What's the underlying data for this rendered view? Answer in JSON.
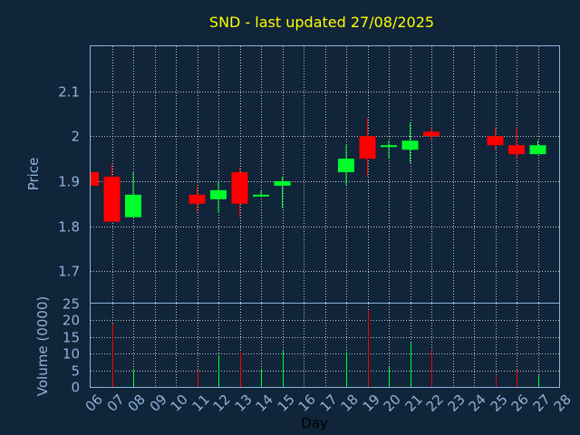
{
  "chart_data": {
    "type": "candlestick",
    "title": "SND - last updated 27/08/2025",
    "xlabel": "Day",
    "price_panel": {
      "ylabel": "Price",
      "ylim": [
        1.63,
        2.2
      ],
      "yticks": [
        1.7,
        1.8,
        1.9,
        2,
        2.1
      ],
      "ytick_labels": [
        "1.7",
        "1.8",
        "1.9",
        "2",
        "2.1"
      ]
    },
    "volume_panel": {
      "ylabel": "Volume (0000)",
      "ylim": [
        0,
        25
      ],
      "yticks": [
        0,
        5,
        10,
        15,
        20,
        25
      ],
      "ytick_labels": [
        "0",
        "5",
        "10",
        "15",
        "20",
        "25"
      ]
    },
    "x_categories": [
      "06",
      "07",
      "08",
      "09",
      "10",
      "11",
      "12",
      "13",
      "14",
      "15",
      "16",
      "17",
      "18",
      "19",
      "20",
      "21",
      "22",
      "23",
      "24",
      "25",
      "26",
      "27",
      "28"
    ],
    "grid": true,
    "colors": {
      "up": "#00ff2a",
      "down": "#ff0000",
      "background": "#10243a",
      "title": "#ffff00",
      "axis": "#8fb3d9"
    },
    "candles": [
      {
        "day": "06",
        "open": 1.92,
        "high": 1.92,
        "low": 1.89,
        "close": 1.89,
        "volume": 0
      },
      {
        "day": "07",
        "open": 1.91,
        "high": 1.94,
        "low": 1.81,
        "close": 1.81,
        "volume": 19
      },
      {
        "day": "08",
        "open": 1.82,
        "high": 1.92,
        "low": 1.82,
        "close": 1.87,
        "volume": 5
      },
      {
        "day": "11",
        "open": 1.87,
        "high": 1.89,
        "low": 1.83,
        "close": 1.85,
        "volume": 5
      },
      {
        "day": "12",
        "open": 1.86,
        "high": 1.9,
        "low": 1.83,
        "close": 1.88,
        "volume": 9.5
      },
      {
        "day": "13",
        "open": 1.92,
        "high": 1.93,
        "low": 1.82,
        "close": 1.85,
        "volume": 10.5
      },
      {
        "day": "14",
        "open": 1.87,
        "high": 1.88,
        "low": 1.865,
        "close": 1.87,
        "volume": 5.5
      },
      {
        "day": "15",
        "open": 1.89,
        "high": 1.91,
        "low": 1.84,
        "close": 1.9,
        "volume": 11
      },
      {
        "day": "18",
        "open": 1.92,
        "high": 1.98,
        "low": 1.89,
        "close": 1.95,
        "volume": 10.5
      },
      {
        "day": "19",
        "open": 2,
        "high": 2.04,
        "low": 1.91,
        "close": 1.95,
        "volume": 23
      },
      {
        "day": "20",
        "open": 1.98,
        "high": 1.99,
        "low": 1.95,
        "close": 1.98,
        "volume": 6
      },
      {
        "day": "21",
        "open": 1.97,
        "high": 2.03,
        "low": 1.94,
        "close": 1.99,
        "volume": 13.5
      },
      {
        "day": "22",
        "open": 2.01,
        "high": 2.02,
        "low": 1.99,
        "close": 2,
        "volume": 11
      },
      {
        "day": "25",
        "open": 2,
        "high": 2.02,
        "low": 1.97,
        "close": 1.98,
        "volume": 3
      },
      {
        "day": "26",
        "open": 1.98,
        "high": 2.02,
        "low": 1.95,
        "close": 1.96,
        "volume": 5
      },
      {
        "day": "27",
        "open": 1.96,
        "high": 1.99,
        "low": 1.96,
        "close": 1.98,
        "volume": 3.5
      }
    ]
  }
}
